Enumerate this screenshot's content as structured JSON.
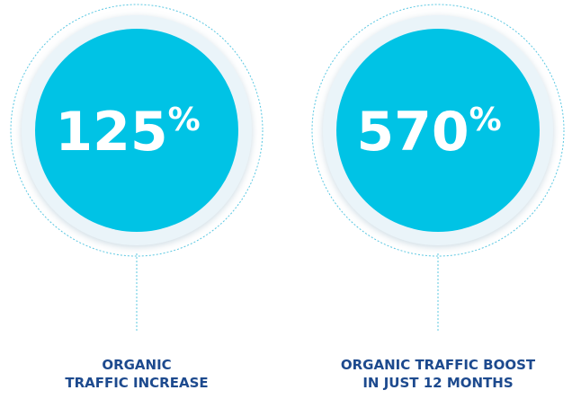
{
  "stats": [
    {
      "number": "125",
      "unit": "%",
      "label": [
        "ORGANIC",
        "TRAFFIC INCREASE"
      ]
    },
    {
      "number": "570",
      "unit": "%",
      "label": [
        "ORGANIC TRAFFIC BOOST",
        "IN JUST 12 MONTHS"
      ]
    }
  ]
}
